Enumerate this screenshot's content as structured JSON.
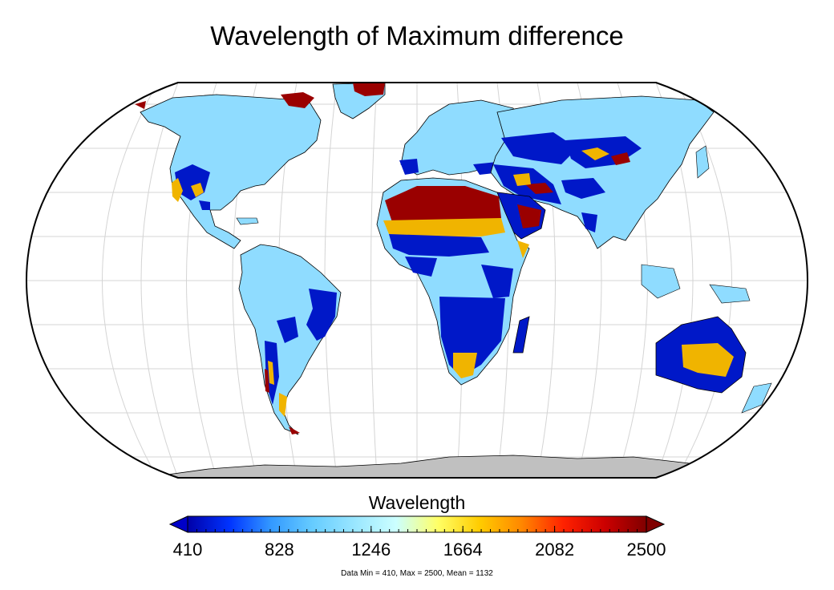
{
  "title": "Wavelength of Maximum difference",
  "colorbar": {
    "label": "Wavelength",
    "min": 410,
    "max": 2500,
    "ticks": [
      "410",
      "828",
      "1246",
      "1664",
      "2082",
      "2500"
    ],
    "colors": [
      "#0000a8",
      "#0033ff",
      "#3399ff",
      "#66ccff",
      "#99e6ff",
      "#ccffff",
      "#ffff66",
      "#ffcc00",
      "#ff8800",
      "#ff2200",
      "#cc0000",
      "#800000"
    ],
    "under_color": "#0000c8",
    "over_color": "#800000"
  },
  "stats": "Data Min = 410, Max = 2500, Mean = 1132",
  "map_colors": {
    "ocean": "#ffffff",
    "land_base": "#8fdcff",
    "antarctica": "#c0c0c0",
    "low": "#0018c8",
    "mid": "#f0b400",
    "high": "#9a0000"
  }
}
